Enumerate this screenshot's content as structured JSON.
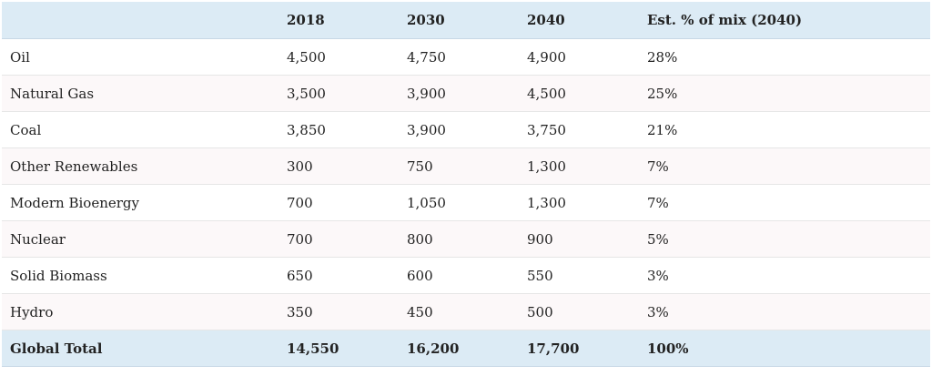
{
  "table": {
    "headers": [
      "",
      "2018",
      "2030",
      "2040",
      "Est. % of mix (2040)"
    ],
    "rows": [
      [
        "Oil",
        "4,500",
        "4,750",
        "4,900",
        "28%"
      ],
      [
        "Natural Gas",
        "3,500",
        "3,900",
        "4,500",
        "25%"
      ],
      [
        "Coal",
        "3,850",
        "3,900",
        "3,750",
        "21%"
      ],
      [
        "Other Renewables",
        "300",
        "750",
        "1,300",
        "7%"
      ],
      [
        "Modern Bioenergy",
        "700",
        "1,050",
        "1,300",
        "7%"
      ],
      [
        "Nuclear",
        "700",
        "800",
        "900",
        "5%"
      ],
      [
        "Solid Biomass",
        "650",
        "600",
        "550",
        "3%"
      ],
      [
        "Hydro",
        "350",
        "450",
        "500",
        "3%"
      ]
    ],
    "total": [
      "Global Total",
      "14,550",
      "16,200",
      "17,700",
      "100%"
    ]
  }
}
